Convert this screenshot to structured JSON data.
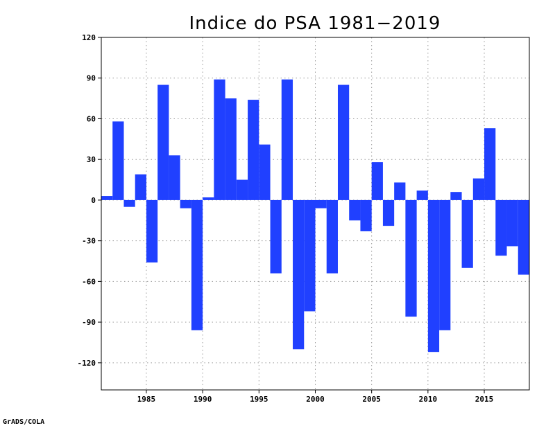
{
  "footer": "GrADS/COLA",
  "chart_data": {
    "type": "bar",
    "title": "Indice do PSA 1981−2019",
    "xlabel": "",
    "ylabel": "",
    "color": "#2040ff",
    "grid": true,
    "xlim": [
      1981,
      2019
    ],
    "ylim": [
      -140,
      120
    ],
    "yticks": [
      120,
      90,
      60,
      30,
      0,
      -30,
      -60,
      -90,
      -120
    ],
    "xticks": [
      1985,
      1990,
      1995,
      2000,
      2005,
      2010,
      2015
    ],
    "years": [
      1981,
      1982,
      1983,
      1984,
      1985,
      1986,
      1987,
      1988,
      1989,
      1990,
      1991,
      1992,
      1993,
      1994,
      1995,
      1996,
      1997,
      1998,
      1999,
      2000,
      2001,
      2002,
      2003,
      2004,
      2005,
      2006,
      2007,
      2008,
      2009,
      2010,
      2011,
      2012,
      2013,
      2014,
      2015,
      2016,
      2017,
      2018,
      2019
    ],
    "values": [
      3,
      58,
      -5,
      19,
      -46,
      85,
      33,
      -6,
      -96,
      2,
      89,
      75,
      15,
      74,
      41,
      -54,
      89,
      -110,
      -82,
      -6,
      -54,
      85,
      -15,
      -23,
      28,
      -19,
      13,
      -86,
      7,
      -112,
      -96,
      6,
      -50,
      16,
      53,
      -41,
      -34,
      -55,
      -55
    ]
  }
}
